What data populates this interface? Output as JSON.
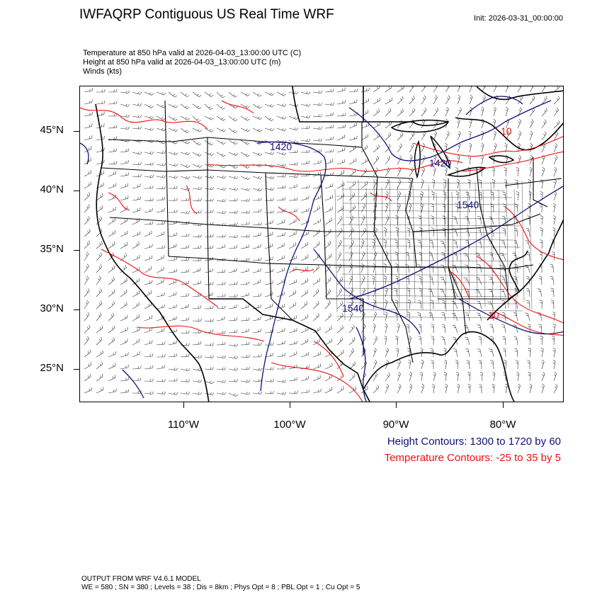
{
  "header": {
    "title": "IWFAQRP Contiguous US Real Time WRF",
    "init": "Init: 2026-03-31_00:00:00",
    "subtitles": [
      "Temperature at 850 hPa valid at 2026-04-03_13:00:00 UTC   (C)",
      "Height at 850 hPa valid at 2026-04-03_13:00:00 UTC   (m)",
      "Winds   (kts)"
    ]
  },
  "map": {
    "projection": "Lambert Conformal, Contiguous US",
    "lat_labels": [
      "45°N",
      "40°N",
      "35°N",
      "30°N",
      "25°N"
    ],
    "lon_labels": [
      "110°W",
      "100°W",
      "90°W",
      "80°W"
    ],
    "height_contour_labels": [
      "1420",
      "1420",
      "1540",
      "1540"
    ],
    "temperature_contour_labels": [
      "10",
      "10"
    ],
    "colors": {
      "height": "#10107a",
      "temperature": "#ee1111",
      "borders": "#000000",
      "winds": "#333333"
    }
  },
  "legend": {
    "height": "Height Contours: 1300 to 1720 by 60",
    "temperature": "Temperature Contours: -25 to 35 by 5"
  },
  "footer": {
    "line1": "OUTPUT FROM WRF V4.6.1 MODEL",
    "line2": "WE = 580 ; SN = 380 ; Levels = 38 ; Dis = 8km ; Phys Opt = 8 ; PBL Opt = 1 ; Cu Opt = 5"
  }
}
